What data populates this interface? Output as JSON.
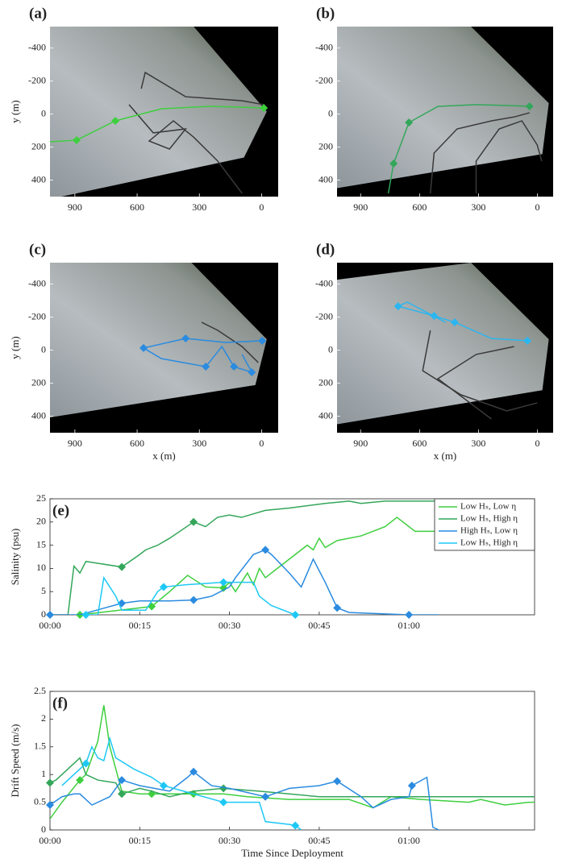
{
  "chart_data": [
    {
      "type": "map",
      "title": "(a)",
      "ylabel": "y (m)",
      "xlim": [
        1020,
        -80
      ],
      "ylim": [
        500,
        -530
      ],
      "xticks": [
        900,
        600,
        300,
        0
      ],
      "yticks": [
        -400,
        -200,
        0,
        200,
        400
      ],
      "series": [
        {
          "color": "#3a3a3a",
          "x": [
            639,
            522,
            366,
            444,
            542,
            425,
            328,
            211,
            94
          ],
          "values": [
            -57,
            114,
            90,
            212,
            163,
            41,
            139,
            285,
            480
          ]
        },
        {
          "color": "#3a3a3a",
          "x": [
            580,
            561,
            366,
            94,
            -11
          ],
          "values": [
            -154,
            -252,
            -105,
            -81,
            -57
          ]
        },
        {
          "color": "#3ecf3e",
          "x": [
            1020,
            892,
            705,
            483,
            250,
            93,
            -11
          ],
          "values": [
            168,
            158,
            41,
            -32,
            -47,
            -42,
            -37
          ],
          "marker_x": [
            892,
            705,
            -11
          ],
          "marker_values": [
            158,
            41,
            -37
          ]
        }
      ]
    },
    {
      "type": "map",
      "title": "(b)",
      "xlim": [
        1020,
        -80
      ],
      "ylim": [
        500,
        -530
      ],
      "xticks": [
        900,
        600,
        300,
        0
      ],
      "yticks": [
        -400,
        -200,
        0,
        200,
        400
      ],
      "series": [
        {
          "color": "#3a3a3a",
          "x": [
            545,
            526,
            409,
            234,
            117,
            40
          ],
          "values": [
            480,
            236,
            90,
            41,
            17,
            -8
          ]
        },
        {
          "color": "#3a3a3a",
          "x": [
            312,
            312,
            195,
            79,
            1,
            -22
          ],
          "values": [
            480,
            285,
            90,
            41,
            187,
            285
          ]
        },
        {
          "color": "#33a65a",
          "x": [
            759,
            732,
            654,
            506,
            312,
            156,
            40
          ],
          "values": [
            480,
            300,
            51,
            -47,
            -57,
            -52,
            -47
          ],
          "marker_x": [
            732,
            654,
            40
          ],
          "marker_values": [
            300,
            51,
            -47
          ]
        }
      ]
    },
    {
      "type": "map",
      "title": "(c)",
      "xlabel": "x (m)",
      "ylabel": "y (m)",
      "xlim": [
        1020,
        -80
      ],
      "ylim": [
        500,
        -530
      ],
      "xticks": [
        900,
        600,
        300,
        0
      ],
      "yticks": [
        -400,
        -200,
        0,
        200,
        400
      ],
      "series": [
        {
          "color": "#3a3a3a",
          "x": [
            289,
            211,
            94,
            16
          ],
          "values": [
            -169,
            -120,
            -22,
            75
          ]
        },
        {
          "color": "#2a8be0",
          "x": [
            -3,
            172,
            366,
            569,
            483,
            269,
            191,
            133,
            47,
            94
          ],
          "values": [
            -57,
            -47,
            -71,
            -13,
            51,
            100,
            -22,
            100,
            134,
            26
          ],
          "marker_x": [
            -3,
            366,
            569,
            269,
            133,
            47
          ],
          "marker_values": [
            -57,
            -71,
            -13,
            100,
            100,
            134
          ]
        }
      ]
    },
    {
      "type": "map",
      "title": "(d)",
      "xlabel": "x (m)",
      "xlim": [
        1020,
        -80
      ],
      "ylim": [
        500,
        -530
      ],
      "xticks": [
        900,
        600,
        300,
        0
      ],
      "yticks": [
        -400,
        -200,
        0,
        200,
        400
      ],
      "series": [
        {
          "color": "#3a3a3a",
          "x": [
            545,
            584,
            390,
            156,
            1
          ],
          "values": [
            -120,
            124,
            270,
            368,
            319
          ]
        },
        {
          "color": "#3a3a3a",
          "x": [
            118,
            312,
            507,
            234
          ],
          "values": [
            -22,
            26,
            173,
            417
          ]
        },
        {
          "color": "#2bb6f0",
          "x": [
            51,
            234,
            421,
            526,
            709,
            662,
            468
          ],
          "values": [
            -57,
            -71,
            -169,
            -208,
            -266,
            -291,
            -169
          ],
          "marker_x": [
            51,
            421,
            526,
            709
          ],
          "marker_values": [
            -57,
            -169,
            -208,
            -266
          ]
        }
      ]
    },
    {
      "type": "line",
      "title": "(e)",
      "ylabel": "Salinity (psu)",
      "legend": "upper right",
      "xlim": [
        0,
        81
      ],
      "ylim": [
        0,
        25
      ],
      "xticks": [
        {
          "value": 0,
          "label": "00:00"
        },
        {
          "value": 15,
          "label": "00:15"
        },
        {
          "value": 30,
          "label": "00:30"
        },
        {
          "value": 45,
          "label": "00:45"
        },
        {
          "value": 60,
          "label": "01:00"
        }
      ],
      "yticks": [
        0,
        5,
        10,
        15,
        20,
        25
      ],
      "series": [
        {
          "name": "Low Hₛ, Low η",
          "color": "#3ecf3e",
          "x": [
            5,
            17,
            20,
            23,
            26,
            29,
            30,
            31,
            33,
            34,
            35,
            36,
            38,
            41,
            43,
            44,
            45,
            46,
            48,
            52,
            56,
            58,
            61,
            74,
            76,
            78,
            80,
            81
          ],
          "values": [
            0,
            1.8,
            5,
            8.5,
            6,
            5.8,
            7,
            5,
            9,
            6.5,
            10,
            8,
            10,
            13,
            15,
            14,
            16.5,
            14.5,
            16,
            17,
            19,
            21,
            18,
            18,
            19,
            14,
            14.5,
            16.5
          ],
          "marker_x": [
            5,
            17,
            29
          ],
          "marker_values": [
            0,
            1.8,
            5.8
          ]
        },
        {
          "name": "Low Hₛ, High η",
          "color": "#33a65a",
          "x": [
            0,
            3,
            4,
            5,
            6,
            12,
            15,
            16,
            18,
            20,
            24,
            26,
            28,
            30,
            32,
            36,
            40,
            46,
            50,
            52,
            56,
            81
          ],
          "values": [
            0,
            0,
            10.5,
            9,
            11.5,
            10.3,
            13,
            14,
            15,
            16.5,
            20,
            19,
            21,
            21.5,
            21,
            22.5,
            23,
            24,
            24.5,
            24,
            24.5,
            24.5
          ],
          "marker_x": [
            12,
            24
          ],
          "marker_values": [
            10.3,
            20
          ]
        },
        {
          "name": "High Hₛ, Low η",
          "color": "#2a8be0",
          "x": [
            0,
            5,
            12,
            15,
            20,
            24,
            27,
            30,
            31,
            34,
            36,
            37,
            40,
            42,
            44,
            46,
            48,
            50,
            60,
            65
          ],
          "values": [
            0,
            0,
            2.5,
            3,
            3,
            3.2,
            4,
            6,
            8,
            13,
            14,
            13,
            9,
            6,
            12,
            7,
            1.5,
            0.5,
            0,
            0
          ],
          "marker_x": [
            0,
            12,
            24,
            36,
            48,
            60
          ],
          "marker_values": [
            0,
            2.5,
            3.2,
            14,
            1.5,
            0
          ]
        },
        {
          "name": "Low Hₛ, High η",
          "color": "#1ec8f5",
          "x": [
            6,
            8,
            9,
            11,
            12,
            16,
            18,
            19,
            23,
            29,
            34,
            35,
            37,
            41
          ],
          "values": [
            0,
            0,
            8,
            4,
            1,
            1,
            5,
            6,
            6.5,
            7,
            7,
            4,
            2,
            0
          ],
          "marker_x": [
            6,
            19,
            29,
            41
          ],
          "marker_values": [
            0,
            6,
            7,
            0
          ]
        }
      ]
    },
    {
      "type": "line",
      "title": "(f)",
      "xlabel": "Time Since Deployment",
      "ylabel": "Drift Speed (m/s)",
      "xlim": [
        0,
        81
      ],
      "ylim": [
        0,
        2.5
      ],
      "xticks": [
        {
          "value": 0,
          "label": "00:00"
        },
        {
          "value": 15,
          "label": "00:15"
        },
        {
          "value": 30,
          "label": "00:30"
        },
        {
          "value": 45,
          "label": "00:45"
        },
        {
          "value": 60,
          "label": "01:00"
        }
      ],
      "yticks": [
        0,
        0.5,
        1,
        1.5,
        2,
        2.5
      ],
      "series": [
        {
          "color": "#3ecf3e",
          "x": [
            0,
            2,
            5,
            6,
            7,
            8,
            9,
            10,
            11,
            12,
            15,
            17,
            24,
            29,
            33,
            40,
            50,
            54,
            57,
            62,
            70,
            72,
            76,
            80,
            81
          ],
          "values": [
            0.2,
            0.5,
            0.9,
            1.0,
            1.3,
            1.6,
            2.25,
            1.5,
            1.1,
            0.7,
            0.65,
            0.65,
            0.65,
            0.65,
            0.6,
            0.55,
            0.55,
            0.4,
            0.6,
            0.55,
            0.5,
            0.55,
            0.45,
            0.5,
            0.5
          ],
          "marker_x": [
            5,
            17,
            24
          ],
          "marker_values": [
            0.9,
            0.65,
            0.65
          ]
        },
        {
          "color": "#33a65a",
          "x": [
            0,
            1,
            3,
            5,
            6,
            8,
            11,
            12,
            15,
            17,
            20,
            24,
            29,
            35,
            45,
            60,
            81
          ],
          "values": [
            0.85,
            0.9,
            1.1,
            1.3,
            1.0,
            0.9,
            0.85,
            0.65,
            0.75,
            0.7,
            0.6,
            0.7,
            0.75,
            0.7,
            0.6,
            0.6,
            0.6
          ],
          "marker_x": [
            0,
            12,
            29
          ],
          "marker_values": [
            0.85,
            0.65,
            0.75
          ]
        },
        {
          "color": "#2a8be0",
          "x": [
            0,
            2,
            4,
            5,
            7,
            10,
            12,
            15,
            20,
            23,
            24,
            27,
            30,
            36,
            40,
            45,
            48,
            52,
            54,
            57,
            60,
            60.5,
            63,
            64,
            65
          ],
          "values": [
            0.45,
            0.6,
            0.65,
            0.65,
            0.45,
            0.6,
            0.9,
            0.8,
            0.7,
            0.95,
            1.05,
            0.8,
            0.75,
            0.6,
            0.75,
            0.8,
            0.88,
            0.6,
            0.4,
            0.55,
            0.6,
            0.8,
            0.95,
            0.05,
            0
          ],
          "marker_x": [
            0,
            12,
            24,
            36,
            48,
            60.5
          ],
          "marker_values": [
            0.45,
            0.9,
            1.05,
            0.6,
            0.88,
            0.8
          ]
        },
        {
          "color": "#1ec8f5",
          "x": [
            2,
            6,
            7,
            8,
            9,
            10,
            11,
            14,
            17,
            19,
            24,
            29,
            35,
            36,
            40,
            41,
            42
          ],
          "values": [
            0.8,
            1.2,
            1.5,
            1.3,
            1.25,
            1.65,
            1.3,
            1.1,
            0.95,
            0.8,
            0.65,
            0.5,
            0.5,
            0.15,
            0.1,
            0.08,
            0
          ],
          "marker_x": [
            6,
            19,
            29,
            41
          ],
          "marker_values": [
            1.2,
            0.8,
            0.5,
            0.08
          ]
        }
      ]
    }
  ]
}
